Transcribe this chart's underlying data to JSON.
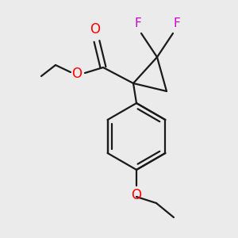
{
  "background_color": "#ebebeb",
  "bond_color": "#1a1a1a",
  "oxygen_color": "#ff0000",
  "fluorine_color": "#cc00cc",
  "bond_lw": 1.6,
  "figsize": [
    3.0,
    3.0
  ],
  "dpi": 100,
  "xlim": [
    0,
    300
  ],
  "ylim": [
    0,
    300
  ]
}
